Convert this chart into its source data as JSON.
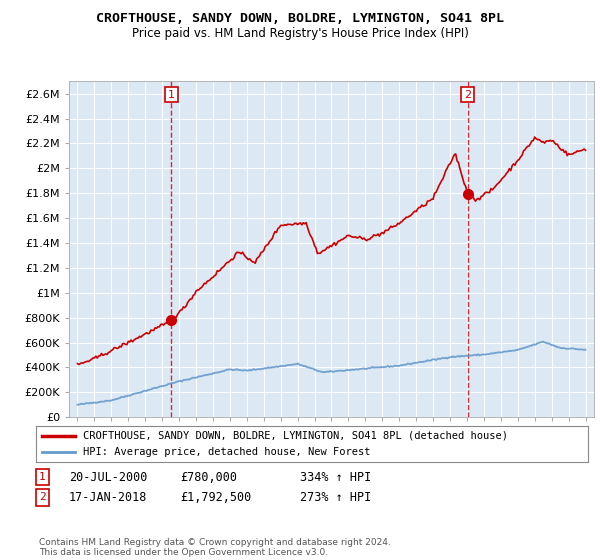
{
  "title": "CROFTHOUSE, SANDY DOWN, BOLDRE, LYMINGTON, SO41 8PL",
  "subtitle": "Price paid vs. HM Land Registry's House Price Index (HPI)",
  "legend_line1": "CROFTHOUSE, SANDY DOWN, BOLDRE, LYMINGTON, SO41 8PL (detached house)",
  "legend_line2": "HPI: Average price, detached house, New Forest",
  "annotation1_label": "1",
  "annotation1_date": "20-JUL-2000",
  "annotation1_price": "£780,000",
  "annotation1_hpi": "334% ↑ HPI",
  "annotation2_label": "2",
  "annotation2_date": "17-JAN-2018",
  "annotation2_price": "£1,792,500",
  "annotation2_hpi": "273% ↑ HPI",
  "copyright": "Contains HM Land Registry data © Crown copyright and database right 2024.\nThis data is licensed under the Open Government Licence v3.0.",
  "red_color": "#cc0000",
  "blue_color": "#6699cc",
  "bg_fill": "#dce9f5",
  "background_color": "#ffffff",
  "grid_color": "#ffffff",
  "ylim": [
    0,
    2700000
  ],
  "yticks": [
    0,
    200000,
    400000,
    600000,
    800000,
    1000000,
    1200000,
    1400000,
    1600000,
    1800000,
    2000000,
    2200000,
    2400000,
    2600000
  ],
  "ytick_labels": [
    "£0",
    "£200K",
    "£400K",
    "£600K",
    "£800K",
    "£1M",
    "£1.2M",
    "£1.4M",
    "£1.6M",
    "£1.8M",
    "£2M",
    "£2.2M",
    "£2.4M",
    "£2.6M"
  ],
  "sale1_x": 2000.54,
  "sale1_y": 780000,
  "sale2_x": 2018.04,
  "sale2_y": 1792500,
  "vline1_x": 2000.54,
  "vline2_x": 2018.04,
  "xlim_min": 1994.5,
  "xlim_max": 2025.5
}
